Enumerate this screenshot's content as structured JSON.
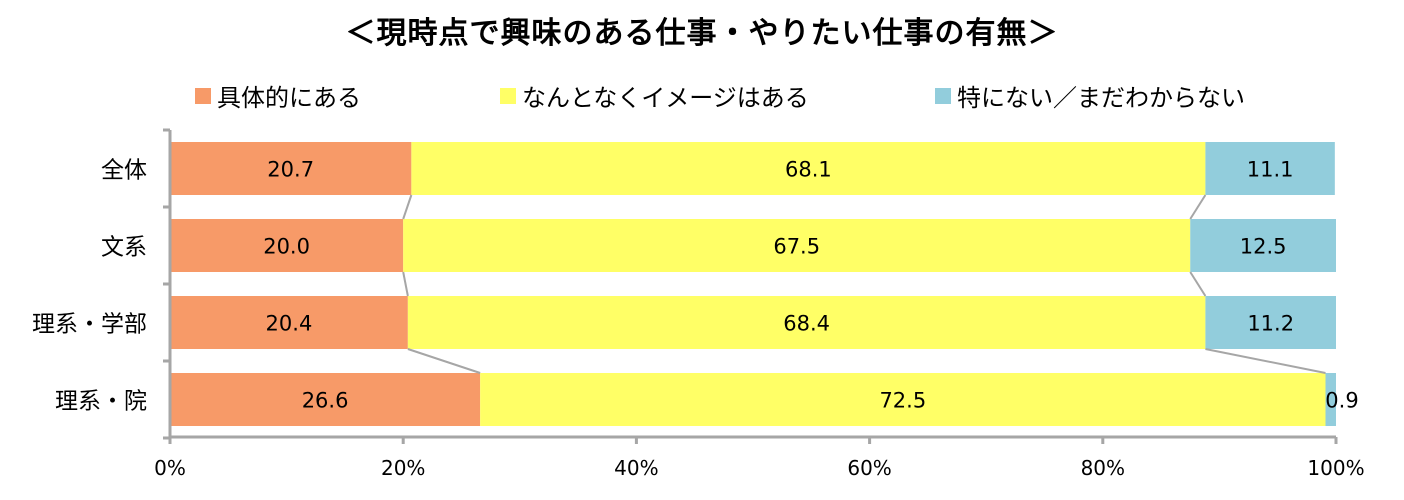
{
  "chart_data": {
    "type": "bar",
    "orientation": "horizontal",
    "stacked": true,
    "percent_stacked": true,
    "title": "＜現時点で興味のある仕事・やりたい仕事の有無＞",
    "categories": [
      "全体",
      "文系",
      "理系・学部",
      "理系・院"
    ],
    "series": [
      {
        "name": "具体的にある",
        "color": "#f79a68",
        "values": [
          20.7,
          20.0,
          20.4,
          26.6
        ]
      },
      {
        "name": "なんとなくイメージはある",
        "color": "#ffff66",
        "values": [
          68.1,
          67.5,
          68.4,
          72.5
        ]
      },
      {
        "name": "特にない／まだわからない",
        "color": "#92cddc",
        "values": [
          11.1,
          12.5,
          11.2,
          0.9
        ]
      }
    ],
    "xlim": [
      0,
      100
    ],
    "x_ticks": [
      "0%",
      "20%",
      "40%",
      "60%",
      "80%",
      "100%"
    ],
    "legend_position": "top",
    "series_lines": true,
    "grid": false
  }
}
